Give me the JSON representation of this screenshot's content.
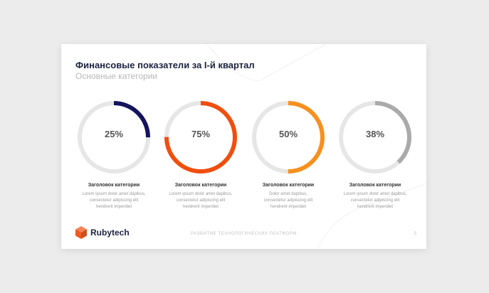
{
  "slide": {
    "title": "Финансовые показатели за I-й квартал",
    "subtitle": "Основные категории",
    "footer_text": "РАЗВИТИЕ ТЕХНОЛОГИЧЕСКИХ ПЛАТФОРМ",
    "page_number": "5"
  },
  "brand": {
    "name": "Rubytech",
    "color": "#f05a22"
  },
  "metrics": [
    {
      "value": "25%",
      "fraction": 0.25,
      "color": "#14145e",
      "title": "Заголовок категории",
      "desc1": "Lorem ipsum dolor amet dapibus,",
      "desc2": "consectetur adipiscing elit",
      "desc3": "hendrerit imperdiet"
    },
    {
      "value": "75%",
      "fraction": 0.75,
      "color": "#f04e0f",
      "title": "Заголовок категории",
      "desc1": "Lorem ipsum dolor amet dapibus,",
      "desc2": "consectetur adipiscing elit",
      "desc3": "hendrerit imperdiet"
    },
    {
      "value": "50%",
      "fraction": 0.5,
      "color": "#f7901e",
      "title": "Заголовок категории",
      "desc1": "Dolor amet dapibus,",
      "desc2": "consectetur adipiscing elit",
      "desc3": "hendrerit imperdiet"
    },
    {
      "value": "38%",
      "fraction": 0.38,
      "color": "#aaaaaa",
      "title": "Заголовок категории",
      "desc1": "Lorem ipsum dolor amet dapibus,",
      "desc2": "consectetur adipiscing elit",
      "desc3": "hendrerit imperdiet"
    }
  ],
  "track_color": "#e6e6e6"
}
